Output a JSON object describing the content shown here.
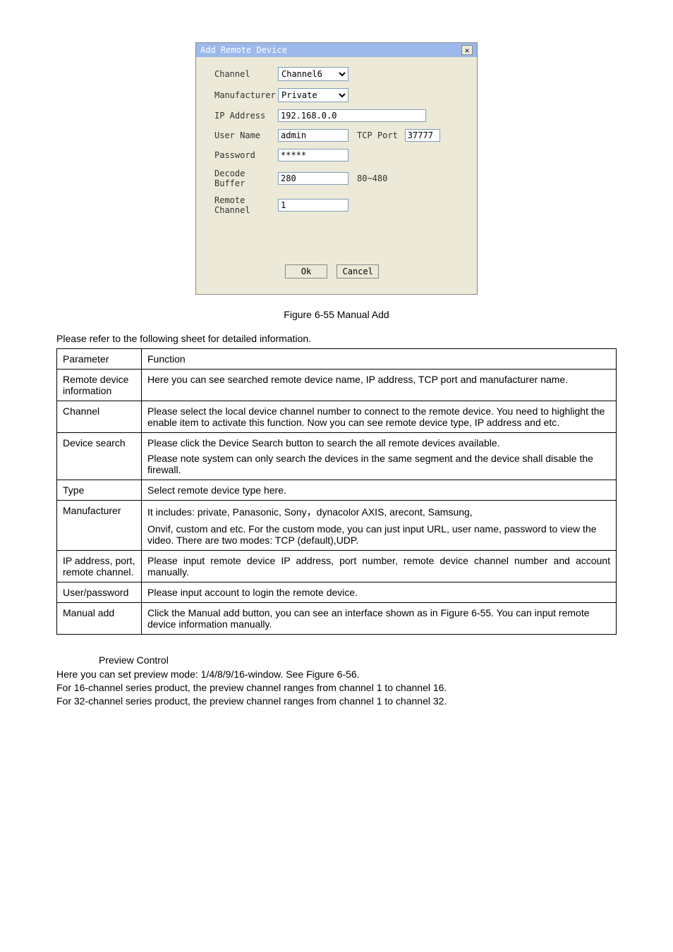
{
  "dialog": {
    "title": "Add Remote Device",
    "labels": {
      "channel": "Channel",
      "manufacturer": "Manufacturer",
      "ip": "IP Address",
      "user": "User Name",
      "password": "Password",
      "decode": "Decode Buffer",
      "remote_ch": "Remote Channel",
      "tcp_port": "TCP Port"
    },
    "values": {
      "channel": "Channel6",
      "manufacturer": "Private",
      "ip": "192.168.0.0",
      "user": "admin",
      "password": "*****",
      "decode": "280",
      "decode_range": "80~480",
      "remote_ch": "1",
      "tcp_port": "37777"
    },
    "buttons": {
      "ok": "Ok",
      "cancel": "Cancel"
    }
  },
  "caption": "Figure 6-55 Manual Add",
  "intro": "Please refer to the following sheet for detailed information.",
  "table": {
    "headers": [
      "Parameter",
      "Function"
    ],
    "rows": [
      {
        "p": "Remote device information",
        "f": "Here you can see searched remote device name, IP address, TCP port and manufacturer name."
      },
      {
        "p": "Channel",
        "f": "Please select the local device channel number to connect to the remote device. You need to highlight the enable item to activate this function. Now you can see remote device type, IP address and etc."
      },
      {
        "p": "Device search",
        "f": "Please click the Device Search button to search the all remote devices available.",
        "f2": "Please note system can only search the devices in the same segment and the device shall disable the firewall."
      },
      {
        "p": "Type",
        "f": "Select remote device type here."
      },
      {
        "p": "Manufacturer",
        "f": "It includes: private, Panasonic, Sony，dynacolor AXIS, arecont, Samsung,",
        "f2": "Onvif, custom and etc. For the custom mode, you can just input URL, user name, password to view the video. There are two modes: TCP (default),UDP."
      },
      {
        "p": "IP address, port, remote channel.",
        "f": "Please input remote device IP address, port number, remote device channel number and account manually.",
        "justify": true
      },
      {
        "p": "User/password",
        "f": "Please input account to login the remote device."
      },
      {
        "p": "Manual add",
        "f": "Click the Manual add button, you can see an interface shown as in Figure 6-55. You can input remote device information manually."
      }
    ]
  },
  "section": {
    "title": "Preview Control",
    "lines": [
      "Here you can set preview mode: 1/4/8/9/16-window. See Figure 6-56.",
      "For 16-channel series product, the preview channel ranges from channel 1 to channel 16.",
      "For 32-channel series product, the preview channel ranges from channel 1 to channel 32."
    ]
  }
}
